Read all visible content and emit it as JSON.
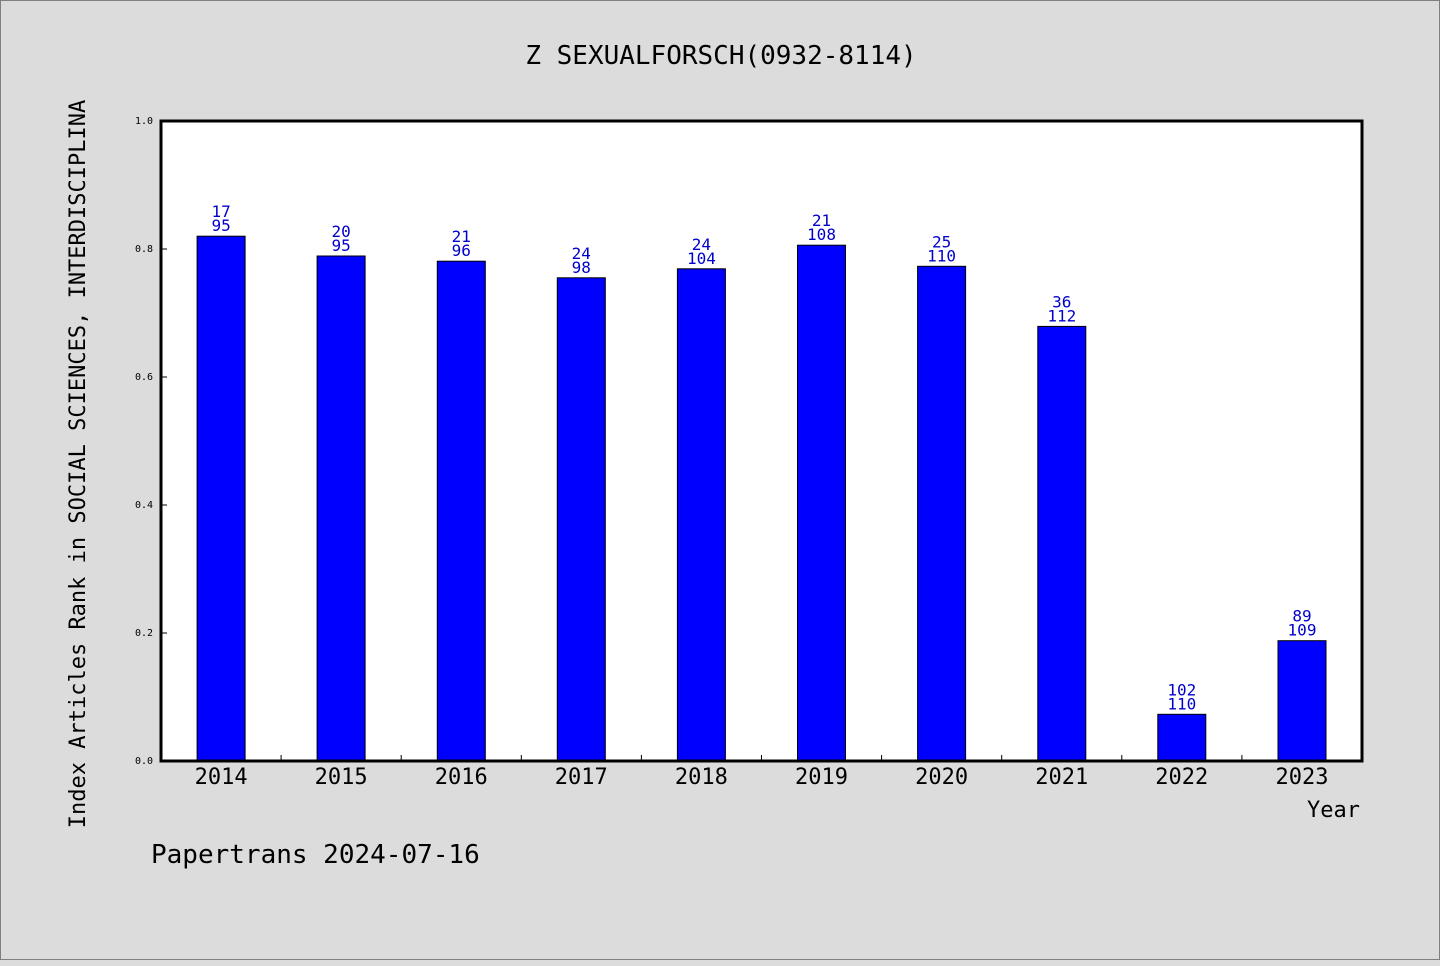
{
  "chart_data": {
    "type": "bar",
    "title": "Z SEXUALFORSCH(0932-8114)",
    "xlabel": "Year",
    "ylabel": "Index Articles Rank in SOCIAL SCIENCES, INTERDISCIPLINA",
    "categories": [
      "2014",
      "2015",
      "2016",
      "2017",
      "2018",
      "2019",
      "2020",
      "2021",
      "2022",
      "2023"
    ],
    "values": [
      0.82,
      0.789,
      0.781,
      0.755,
      0.769,
      0.806,
      0.773,
      0.679,
      0.073,
      0.188
    ],
    "label_top": [
      "17",
      "20",
      "21",
      "24",
      "24",
      "21",
      "25",
      "36",
      "102",
      "89"
    ],
    "label_bottom": [
      "95",
      "95",
      "96",
      "98",
      "104",
      "108",
      "110",
      "112",
      "110",
      "109"
    ],
    "yticks": [
      "0.0",
      "0.2",
      "0.4",
      "0.6",
      "0.8",
      "1.0"
    ],
    "ylim": [
      0,
      1.0
    ],
    "grid": false,
    "bar_color": "#0000ff",
    "label_color": "#0000cc"
  },
  "footer": "Papertrans 2024-07-16"
}
